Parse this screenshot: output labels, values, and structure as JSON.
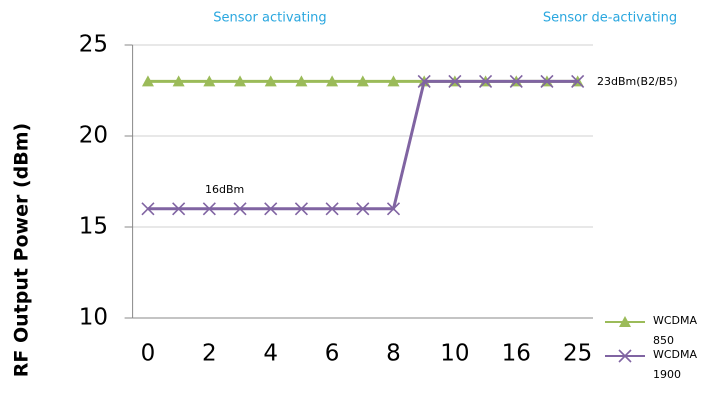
{
  "chart_data": {
    "type": "line",
    "y_label": "RF Output Power (dBm)",
    "annotations": [
      "Sensor activating",
      "Sensor de-activating",
      "16dBm",
      "23dBm(B2/B5)"
    ],
    "categories": [
      "0",
      null,
      "2",
      null,
      "4",
      null,
      "6",
      null,
      "8",
      null,
      "10",
      null,
      "16",
      null,
      "25"
    ],
    "series": [
      {
        "name": "WCDMA850",
        "color": "#9bbb59",
        "marker": "triangle",
        "values": [
          23,
          23,
          23,
          23,
          23,
          23,
          23,
          23,
          23,
          23,
          23,
          23,
          23,
          23,
          23
        ]
      },
      {
        "name": "WCDMA1900",
        "color": "#8064a2",
        "marker": "x",
        "values": [
          16,
          16,
          16,
          16,
          16,
          16,
          16,
          16,
          16,
          23,
          23,
          23,
          23,
          23,
          23
        ]
      }
    ],
    "ylim": [
      10,
      25
    ],
    "yticks": [
      10,
      15,
      20,
      25
    ],
    "grid": true
  }
}
